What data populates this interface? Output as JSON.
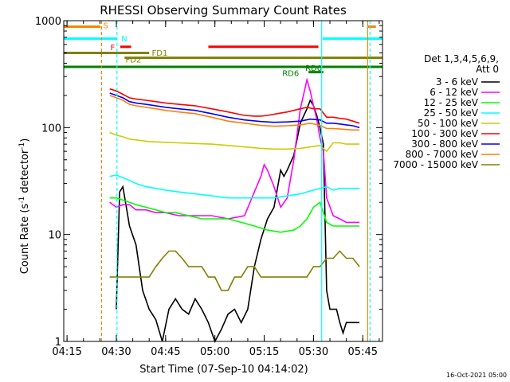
{
  "chart_data": {
    "type": "line",
    "title": "RHESSI Observing Summary Count Rates",
    "xlabel": "Start Time (07-Sep-10 04:14:02)",
    "ylabel_parts": [
      "Count Rate (s",
      "-1",
      " detector",
      "-1",
      ")"
    ],
    "x_unit": "minutes after 04:14:02",
    "xlim": [
      0,
      97
    ],
    "ylim": [
      1,
      1000
    ],
    "y_scale": "log",
    "x_ticks": [
      {
        "t": 1,
        "label": "04:15"
      },
      {
        "t": 16,
        "label": "04:30"
      },
      {
        "t": 31,
        "label": "04:45"
      },
      {
        "t": 46,
        "label": "05:00"
      },
      {
        "t": 61,
        "label": "05:15"
      },
      {
        "t": 76,
        "label": "05:30"
      },
      {
        "t": 91,
        "label": "05:45"
      }
    ],
    "y_ticks": [
      {
        "v": 1,
        "label": "1"
      },
      {
        "v": 10,
        "label": "10"
      },
      {
        "v": 100,
        "label": "100"
      },
      {
        "v": 1000,
        "label": "1000"
      }
    ],
    "legend_header": [
      "Det 1,3,4,5,6,9,",
      "Att 0"
    ],
    "legend_position": "right",
    "series": [
      {
        "name": "3 - 6 keV",
        "color": "#000000",
        "points": [
          [
            16,
            2
          ],
          [
            17,
            25
          ],
          [
            18,
            28
          ],
          [
            20,
            12
          ],
          [
            22,
            8
          ],
          [
            24,
            3
          ],
          [
            26,
            2
          ],
          [
            28,
            1.6
          ],
          [
            30,
            1
          ],
          [
            32,
            2
          ],
          [
            34,
            2.5
          ],
          [
            36,
            2
          ],
          [
            38,
            1.8
          ],
          [
            40,
            2.5
          ],
          [
            42,
            2
          ],
          [
            44,
            1.5
          ],
          [
            46,
            1
          ],
          [
            48,
            1.3
          ],
          [
            50,
            1.8
          ],
          [
            52,
            2
          ],
          [
            54,
            1.5
          ],
          [
            56,
            2
          ],
          [
            58,
            5
          ],
          [
            60,
            9
          ],
          [
            62,
            14
          ],
          [
            64,
            18
          ],
          [
            66,
            40
          ],
          [
            67,
            35
          ],
          [
            68,
            40
          ],
          [
            70,
            55
          ],
          [
            72,
            110
          ],
          [
            74,
            150
          ],
          [
            75,
            180
          ],
          [
            76,
            160
          ],
          [
            77,
            130
          ],
          [
            78,
            100
          ],
          [
            79,
            70
          ],
          [
            80,
            3
          ],
          [
            81,
            2
          ],
          [
            82,
            2
          ],
          [
            83,
            2
          ],
          [
            84,
            1.5
          ],
          [
            85,
            1.2
          ],
          [
            86,
            1.5
          ],
          [
            88,
            1.5
          ],
          [
            90,
            1.5
          ]
        ]
      },
      {
        "name": "6 - 12 keV",
        "color": "#ff00ff",
        "points": [
          [
            14,
            20
          ],
          [
            16,
            18
          ],
          [
            18,
            19
          ],
          [
            20,
            19
          ],
          [
            22,
            17
          ],
          [
            25,
            17
          ],
          [
            28,
            16
          ],
          [
            31,
            16
          ],
          [
            35,
            15
          ],
          [
            40,
            15
          ],
          [
            45,
            15
          ],
          [
            50,
            14
          ],
          [
            55,
            15
          ],
          [
            58,
            25
          ],
          [
            60,
            35
          ],
          [
            61,
            45
          ],
          [
            62,
            40
          ],
          [
            64,
            28
          ],
          [
            66,
            18
          ],
          [
            68,
            22
          ],
          [
            70,
            50
          ],
          [
            72,
            150
          ],
          [
            74,
            280
          ],
          [
            75,
            220
          ],
          [
            76,
            160
          ],
          [
            77,
            120
          ],
          [
            78,
            80
          ],
          [
            79,
            60
          ],
          [
            80,
            22
          ],
          [
            82,
            15
          ],
          [
            84,
            14
          ],
          [
            86,
            13
          ],
          [
            88,
            13
          ],
          [
            90,
            13
          ]
        ]
      },
      {
        "name": "12 - 25 keV",
        "color": "#00ff00",
        "points": [
          [
            14,
            22
          ],
          [
            16,
            22
          ],
          [
            18,
            21
          ],
          [
            20,
            20
          ],
          [
            22,
            19
          ],
          [
            25,
            18
          ],
          [
            28,
            17
          ],
          [
            31,
            16
          ],
          [
            34,
            16
          ],
          [
            38,
            15
          ],
          [
            42,
            14
          ],
          [
            46,
            14
          ],
          [
            50,
            14
          ],
          [
            54,
            13
          ],
          [
            58,
            12
          ],
          [
            62,
            11
          ],
          [
            66,
            10.5
          ],
          [
            70,
            11
          ],
          [
            72,
            12
          ],
          [
            74,
            14
          ],
          [
            76,
            18
          ],
          [
            78,
            20
          ],
          [
            80,
            13
          ],
          [
            82,
            12
          ],
          [
            84,
            12
          ],
          [
            86,
            12
          ],
          [
            88,
            12
          ],
          [
            90,
            12
          ]
        ]
      },
      {
        "name": "25 - 50 keV",
        "color": "#00ffff",
        "points": [
          [
            14,
            35
          ],
          [
            16,
            36
          ],
          [
            18,
            34
          ],
          [
            20,
            32
          ],
          [
            22,
            30
          ],
          [
            25,
            28
          ],
          [
            28,
            27
          ],
          [
            31,
            26
          ],
          [
            35,
            25
          ],
          [
            40,
            24
          ],
          [
            45,
            23
          ],
          [
            50,
            22
          ],
          [
            55,
            22
          ],
          [
            60,
            22
          ],
          [
            64,
            22
          ],
          [
            68,
            23
          ],
          [
            72,
            24
          ],
          [
            76,
            26
          ],
          [
            80,
            28
          ],
          [
            82,
            26
          ],
          [
            84,
            27
          ],
          [
            86,
            27
          ],
          [
            88,
            27
          ],
          [
            90,
            27
          ]
        ]
      },
      {
        "name": "50 - 100 keV",
        "color": "#cccc00",
        "points": [
          [
            14,
            90
          ],
          [
            16,
            85
          ],
          [
            18,
            82
          ],
          [
            20,
            78
          ],
          [
            23,
            76
          ],
          [
            26,
            74
          ],
          [
            30,
            73
          ],
          [
            35,
            72
          ],
          [
            40,
            71
          ],
          [
            45,
            70
          ],
          [
            50,
            68
          ],
          [
            55,
            66
          ],
          [
            60,
            64
          ],
          [
            64,
            63
          ],
          [
            68,
            63
          ],
          [
            72,
            64
          ],
          [
            75,
            66
          ],
          [
            78,
            68
          ],
          [
            80,
            60
          ],
          [
            82,
            72
          ],
          [
            84,
            72
          ],
          [
            86,
            70
          ],
          [
            88,
            70
          ],
          [
            90,
            70
          ]
        ]
      },
      {
        "name": "100 - 300 keV",
        "color": "#ff0000",
        "points": [
          [
            14,
            230
          ],
          [
            16,
            220
          ],
          [
            18,
            205
          ],
          [
            20,
            190
          ],
          [
            22,
            185
          ],
          [
            25,
            180
          ],
          [
            28,
            175
          ],
          [
            31,
            170
          ],
          [
            35,
            165
          ],
          [
            40,
            160
          ],
          [
            45,
            150
          ],
          [
            50,
            140
          ],
          [
            55,
            130
          ],
          [
            58,
            128
          ],
          [
            60,
            128
          ],
          [
            62,
            130
          ],
          [
            65,
            135
          ],
          [
            68,
            140
          ],
          [
            70,
            145
          ],
          [
            72,
            150
          ],
          [
            74,
            155
          ],
          [
            76,
            150
          ],
          [
            78,
            150
          ],
          [
            80,
            125
          ],
          [
            82,
            125
          ],
          [
            84,
            122
          ],
          [
            86,
            120
          ],
          [
            88,
            115
          ],
          [
            90,
            110
          ]
        ]
      },
      {
        "name": "300 - 800 keV",
        "color": "#0000ff",
        "points": [
          [
            14,
            210
          ],
          [
            16,
            200
          ],
          [
            18,
            190
          ],
          [
            20,
            175
          ],
          [
            22,
            170
          ],
          [
            25,
            165
          ],
          [
            28,
            160
          ],
          [
            31,
            155
          ],
          [
            35,
            150
          ],
          [
            40,
            145
          ],
          [
            45,
            135
          ],
          [
            50,
            125
          ],
          [
            55,
            118
          ],
          [
            60,
            114
          ],
          [
            64,
            112
          ],
          [
            68,
            113
          ],
          [
            72,
            115
          ],
          [
            75,
            120
          ],
          [
            78,
            118
          ],
          [
            80,
            110
          ],
          [
            82,
            110
          ],
          [
            84,
            108
          ],
          [
            86,
            106
          ],
          [
            88,
            104
          ],
          [
            90,
            100
          ]
        ]
      },
      {
        "name": "800 - 7000 keV",
        "color": "#ff8000",
        "points": [
          [
            14,
            200
          ],
          [
            16,
            190
          ],
          [
            18,
            180
          ],
          [
            20,
            165
          ],
          [
            22,
            160
          ],
          [
            25,
            155
          ],
          [
            28,
            150
          ],
          [
            31,
            145
          ],
          [
            35,
            140
          ],
          [
            40,
            135
          ],
          [
            45,
            125
          ],
          [
            50,
            115
          ],
          [
            55,
            110
          ],
          [
            60,
            105
          ],
          [
            64,
            103
          ],
          [
            68,
            104
          ],
          [
            72,
            106
          ],
          [
            75,
            110
          ],
          [
            78,
            105
          ],
          [
            80,
            98
          ],
          [
            82,
            98
          ],
          [
            84,
            97
          ],
          [
            86,
            96
          ],
          [
            88,
            95
          ],
          [
            90,
            95
          ]
        ]
      },
      {
        "name": "7000 - 15000 keV",
        "color": "#808000",
        "points": [
          [
            14,
            4
          ],
          [
            16,
            4
          ],
          [
            18,
            4
          ],
          [
            20,
            4
          ],
          [
            22,
            4
          ],
          [
            24,
            4
          ],
          [
            26,
            4
          ],
          [
            28,
            5
          ],
          [
            30,
            6
          ],
          [
            32,
            7
          ],
          [
            34,
            7
          ],
          [
            36,
            6
          ],
          [
            38,
            5
          ],
          [
            40,
            5
          ],
          [
            42,
            5
          ],
          [
            44,
            4
          ],
          [
            46,
            4
          ],
          [
            48,
            3
          ],
          [
            50,
            3
          ],
          [
            52,
            4
          ],
          [
            54,
            4
          ],
          [
            56,
            5
          ],
          [
            58,
            5
          ],
          [
            60,
            4
          ],
          [
            62,
            4
          ],
          [
            64,
            4
          ],
          [
            66,
            4
          ],
          [
            68,
            4
          ],
          [
            70,
            4
          ],
          [
            72,
            4
          ],
          [
            74,
            4
          ],
          [
            76,
            5
          ],
          [
            78,
            5
          ],
          [
            80,
            6
          ],
          [
            82,
            6
          ],
          [
            84,
            7
          ],
          [
            86,
            6
          ],
          [
            88,
            6
          ],
          [
            90,
            5
          ]
        ]
      }
    ],
    "flags": [
      {
        "label": "S",
        "color": "#ff8000",
        "y": 880,
        "x0": 0,
        "x1": 11.2,
        "label_x": 12,
        "label_y": 850
      },
      {
        "label": "N",
        "color": "#00ffff",
        "y": 680,
        "x0": 0,
        "x1": 16.2,
        "label_x": 17.5,
        "label_y": 640
      },
      {
        "label": "F",
        "color": "#ff0000",
        "y": 570,
        "x0": 17.2,
        "x1": 20.5,
        "label_x": 14.2,
        "label_y": 530
      },
      {
        "label": "FD1",
        "color": "#808000",
        "y": 500,
        "x0": 0,
        "x1": 26,
        "label_x": 26.8,
        "label_y": 470
      },
      {
        "label": "FD2",
        "color": "#808000",
        "y": 450,
        "x0": 18.5,
        "x1": 97,
        "label_x": 18.8,
        "label_y": 405
      },
      {
        "label": "RD0",
        "color": "#008000",
        "y": 370,
        "x0": 0,
        "x1": 97,
        "label_x": 73.5,
        "label_y": 340
      },
      {
        "label": "RD6",
        "color": "#008000",
        "y": 330,
        "x0": 74.5,
        "x1": 79,
        "label_x": 66.5,
        "label_y": 305
      },
      {
        "label": "",
        "color": "#ff0000",
        "y": 570,
        "x0": 44,
        "x1": 77.5,
        "label_x": 0,
        "label_y": 0
      },
      {
        "label": "",
        "color": "#00ffff",
        "y": 680,
        "x0": 78.8,
        "x1": 97,
        "label_x": 0,
        "label_y": 0
      },
      {
        "label": "",
        "color": "#ff8000",
        "y": 880,
        "x0": 92.5,
        "x1": 95,
        "label_x": 0,
        "label_y": 0
      }
    ],
    "vlines": [
      {
        "t": 11.5,
        "color": "#ff8000",
        "dash": "4,3"
      },
      {
        "t": 16.2,
        "color": "#00ffff",
        "dash": "4,3"
      },
      {
        "t": 78.5,
        "color": "#00ffff",
        "dash": ""
      },
      {
        "t": 92.5,
        "color": "#ff8000",
        "dash": ""
      },
      {
        "t": 93.2,
        "color": "#00ffff",
        "dash": "4,3"
      }
    ]
  },
  "footer": {
    "timestamp": "16-Oct-2021 05:00"
  }
}
